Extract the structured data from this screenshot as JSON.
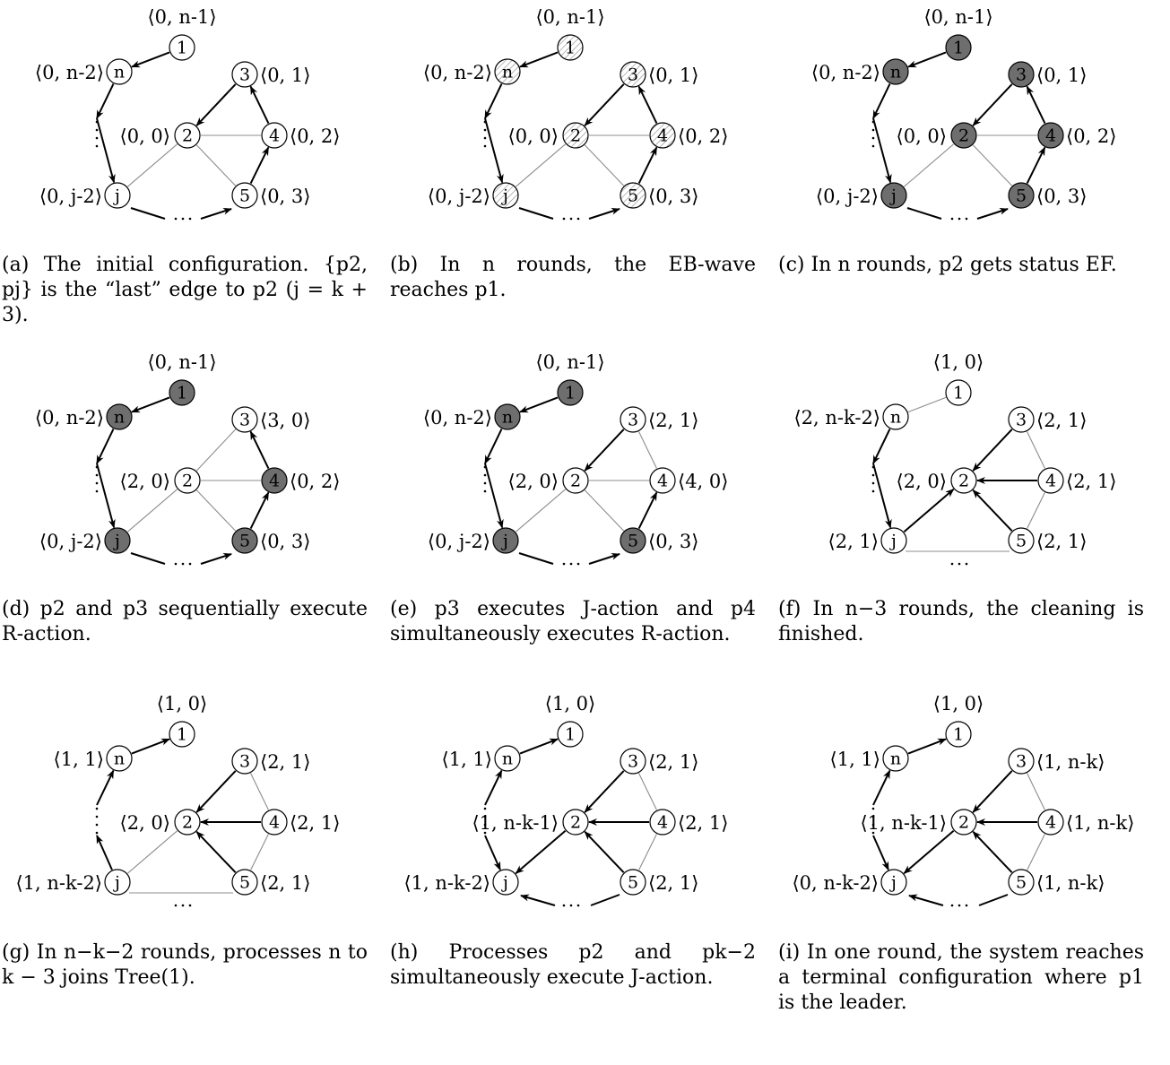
{
  "panels": [
    {
      "caption": "(a) The initial configuration. {p2, pj} is the “last” edge to p2 (j = k + 3).",
      "fills": {
        "1": "white",
        "n": "white",
        "3": "white",
        "2": "white",
        "4": "white",
        "j": "white",
        "5": "white"
      },
      "labels": {
        "1": "⟨0, n-1⟩",
        "n": "⟨0, n-2⟩",
        "3": "⟨0, 1⟩",
        "2": "⟨0, 0⟩",
        "4": "⟨0, 2⟩",
        "j": "⟨0, j-2⟩",
        "5": "⟨0, 3⟩"
      },
      "arrows": [
        "1>n",
        "n>dn",
        "dn>j",
        "jb>5b",
        "4>3",
        "3>2",
        "5>4"
      ],
      "thin": [
        "2-4",
        "2-j",
        "2-5"
      ]
    },
    {
      "caption": "(b) In n rounds, the EB-wave reaches p1.",
      "fills": {
        "1": "hatch",
        "n": "hatch",
        "3": "hatch",
        "2": "hatch",
        "4": "hatch",
        "j": "hatch",
        "5": "hatch"
      },
      "labels": {
        "1": "⟨0, n-1⟩",
        "n": "⟨0, n-2⟩",
        "3": "⟨0, 1⟩",
        "2": "⟨0, 0⟩",
        "4": "⟨0, 2⟩",
        "j": "⟨0, j-2⟩",
        "5": "⟨0, 3⟩"
      },
      "arrows": [
        "1>n",
        "n>dn",
        "dn>j",
        "jb>5b",
        "4>3",
        "3>2",
        "5>4"
      ],
      "thin": [
        "2-4",
        "2-j",
        "2-5"
      ]
    },
    {
      "caption": "(c) In n rounds, p2 gets status EF.",
      "fills": {
        "1": "gray",
        "n": "gray",
        "3": "gray",
        "2": "gray",
        "4": "gray",
        "j": "gray",
        "5": "gray"
      },
      "labels": {
        "1": "⟨0, n-1⟩",
        "n": "⟨0, n-2⟩",
        "3": "⟨0, 1⟩",
        "2": "⟨0, 0⟩",
        "4": "⟨0, 2⟩",
        "j": "⟨0, j-2⟩",
        "5": "⟨0, 3⟩"
      },
      "arrows": [
        "1>n",
        "n>dn",
        "dn>j",
        "jb>5b",
        "4>3",
        "3>2",
        "5>4"
      ],
      "thin": [
        "2-4",
        "2-j",
        "2-5"
      ]
    },
    {
      "caption": "(d) p2 and p3 sequentially execute R-action.",
      "fills": {
        "1": "gray",
        "n": "gray",
        "3": "white",
        "2": "white",
        "4": "gray",
        "j": "gray",
        "5": "gray"
      },
      "labels": {
        "1": "⟨0, n-1⟩",
        "n": "⟨0, n-2⟩",
        "3": "⟨3, 0⟩",
        "2": "⟨2, 0⟩",
        "4": "⟨0, 2⟩",
        "j": "⟨0, j-2⟩",
        "5": "⟨0, 3⟩"
      },
      "arrows": [
        "1>n",
        "n>dn",
        "dn>j",
        "jb>5b",
        "4>3",
        "5>4"
      ],
      "thin": [
        "2-3",
        "2-4",
        "2-j",
        "2-5"
      ]
    },
    {
      "caption": "(e) p3 executes J-action and p4 simultaneously executes R-action.",
      "fills": {
        "1": "gray",
        "n": "gray",
        "3": "white",
        "2": "white",
        "4": "white",
        "j": "gray",
        "5": "gray"
      },
      "labels": {
        "1": "⟨0, n-1⟩",
        "n": "⟨0, n-2⟩",
        "3": "⟨2, 1⟩",
        "2": "⟨2, 0⟩",
        "4": "⟨4, 0⟩",
        "j": "⟨0, j-2⟩",
        "5": "⟨0, 3⟩"
      },
      "arrows": [
        "1>n",
        "n>dn",
        "dn>j",
        "jb>5b",
        "3>2",
        "5>4"
      ],
      "thin": [
        "3-4",
        "2-4",
        "2-j",
        "2-5"
      ]
    },
    {
      "caption": "(f) In n−3 rounds, the cleaning is finished.",
      "fills": {
        "1": "white",
        "n": "white",
        "3": "white",
        "2": "white",
        "4": "white",
        "j": "white",
        "5": "white"
      },
      "labels": {
        "1": "⟨1, 0⟩",
        "n": "⟨2, n-k-2⟩",
        "3": "⟨2, 1⟩",
        "2": "⟨2, 0⟩",
        "4": "⟨2, 1⟩",
        "j": "⟨2, 1⟩",
        "5": "⟨2, 1⟩"
      },
      "arrows": [
        "n>dn",
        "dn>j",
        "3>2",
        "4>2",
        "5>2",
        "j>2"
      ],
      "thin": [
        "1-n",
        "3-4",
        "4-5",
        "jb-5b"
      ]
    },
    {
      "caption": "(g) In n−k−2 rounds, processes n to k − 3 joins Tree(1).",
      "fills": {
        "1": "white",
        "n": "white",
        "3": "white",
        "2": "white",
        "4": "white",
        "j": "white",
        "5": "white"
      },
      "labels": {
        "1": "⟨1, 0⟩",
        "n": "⟨1, 1⟩",
        "3": "⟨2, 1⟩",
        "2": "⟨2, 0⟩",
        "4": "⟨2, 1⟩",
        "j": "⟨1, n-k-2⟩",
        "5": "⟨2, 1⟩"
      },
      "arrows": [
        "n>1",
        "dn>n",
        "j>dj",
        "3>2",
        "4>2",
        "5>2"
      ],
      "thin": [
        "3-4",
        "4-5",
        "2-j",
        "jb-5b"
      ]
    },
    {
      "caption": "(h) Processes p2 and pk−2 simultaneously execute J-action.",
      "fills": {
        "1": "white",
        "n": "white",
        "3": "white",
        "2": "white",
        "4": "white",
        "j": "white",
        "5": "white"
      },
      "labels": {
        "1": "⟨1, 0⟩",
        "n": "⟨1, 1⟩",
        "3": "⟨2, 1⟩",
        "2": "⟨1, n-k-1⟩",
        "4": "⟨2, 1⟩",
        "j": "⟨1, n-k-2⟩",
        "5": "⟨2, 1⟩"
      },
      "arrows": [
        "n>1",
        "dn>n",
        "dj>j",
        "3>2",
        "4>2",
        "5>2",
        "2>j",
        "5b>jb"
      ],
      "thin": [
        "3-4",
        "4-5"
      ]
    },
    {
      "caption": "(i) In one round, the system reaches a terminal configuration where p1 is the leader.",
      "fills": {
        "1": "white",
        "n": "white",
        "3": "white",
        "2": "white",
        "4": "white",
        "j": "white",
        "5": "white"
      },
      "labels": {
        "1": "⟨1, 0⟩",
        "n": "⟨1, 1⟩",
        "3": "⟨1, n-k⟩",
        "2": "⟨1, n-k-1⟩",
        "4": "⟨1, n-k⟩",
        "j": "⟨0, n-k-2⟩",
        "5": "⟨1, n-k⟩"
      },
      "arrows": [
        "n>1",
        "dn>n",
        "dj>j",
        "3>2",
        "4>2",
        "5>2",
        "2>j",
        "5b>jb"
      ],
      "thin": [
        "3-4",
        "4-5"
      ]
    }
  ]
}
